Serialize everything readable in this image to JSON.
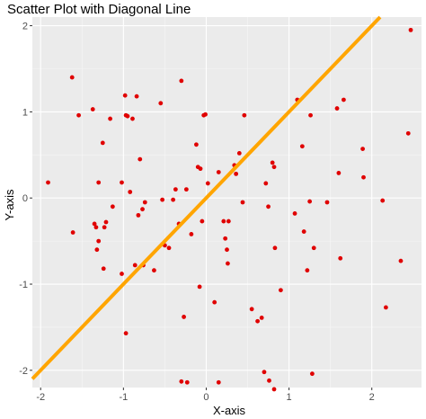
{
  "chart_data": {
    "type": "scatter",
    "title": "Scatter Plot with Diagonal Line",
    "xlabel": "X-axis",
    "ylabel": "Y-axis",
    "xlim": [
      -2.1,
      2.6
    ],
    "ylim": [
      -2.2,
      2.1
    ],
    "x_ticks": [
      -2,
      -1,
      0,
      1,
      2
    ],
    "y_ticks": [
      -2,
      -1,
      0,
      1,
      2
    ],
    "x_tick_labels": [
      "-2",
      "-1",
      "0",
      "1",
      "2"
    ],
    "y_tick_labels": [
      "-2",
      "-1",
      "0",
      "1",
      "2"
    ],
    "grid": true,
    "colors": {
      "panel": "#ebebeb",
      "grid_major": "#ffffff",
      "grid_minor": "#f7f7f7",
      "points": "#e00000",
      "line": "#ffa500"
    },
    "reference_line": {
      "slope": 1,
      "intercept": 0
    },
    "points": [
      {
        "x": -1.91,
        "y": 0.18
      },
      {
        "x": -1.62,
        "y": 1.4
      },
      {
        "x": -1.61,
        "y": -0.4
      },
      {
        "x": -1.54,
        "y": 0.96
      },
      {
        "x": -1.37,
        "y": 1.03
      },
      {
        "x": -1.35,
        "y": -0.3
      },
      {
        "x": -1.33,
        "y": -0.34
      },
      {
        "x": -1.3,
        "y": 0.18
      },
      {
        "x": -1.3,
        "y": -0.5
      },
      {
        "x": -1.25,
        "y": 0.64
      },
      {
        "x": -1.23,
        "y": -0.34
      },
      {
        "x": -1.21,
        "y": -0.28
      },
      {
        "x": -1.16,
        "y": 0.92
      },
      {
        "x": -1.13,
        "y": -0.1
      },
      {
        "x": -1.32,
        "y": -0.6
      },
      {
        "x": -1.24,
        "y": -0.82
      },
      {
        "x": -1.02,
        "y": 0.18
      },
      {
        "x": -0.98,
        "y": 1.19
      },
      {
        "x": -0.97,
        "y": 0.96
      },
      {
        "x": -0.95,
        "y": 0.95
      },
      {
        "x": -0.92,
        "y": 0.07
      },
      {
        "x": -0.89,
        "y": 0.92
      },
      {
        "x": -0.86,
        "y": -0.78
      },
      {
        "x": -0.84,
        "y": 1.18
      },
      {
        "x": -0.82,
        "y": -0.2
      },
      {
        "x": -0.8,
        "y": 0.45
      },
      {
        "x": -0.77,
        "y": -0.13
      },
      {
        "x": -0.76,
        "y": -0.78
      },
      {
        "x": -0.74,
        "y": -0.05
      },
      {
        "x": -1.02,
        "y": -0.88
      },
      {
        "x": -0.97,
        "y": -1.57
      },
      {
        "x": -0.63,
        "y": -0.84
      },
      {
        "x": -0.55,
        "y": 1.1
      },
      {
        "x": -0.53,
        "y": -0.02
      },
      {
        "x": -0.5,
        "y": -0.55
      },
      {
        "x": -0.45,
        "y": -0.58
      },
      {
        "x": -0.4,
        "y": -0.02
      },
      {
        "x": -0.37,
        "y": 0.1
      },
      {
        "x": -0.33,
        "y": -0.3
      },
      {
        "x": -0.3,
        "y": 1.36
      },
      {
        "x": -0.27,
        "y": -1.38
      },
      {
        "x": -0.24,
        "y": 0.1
      },
      {
        "x": -0.3,
        "y": -2.13
      },
      {
        "x": -0.23,
        "y": -2.14
      },
      {
        "x": -0.12,
        "y": 0.62
      },
      {
        "x": -0.1,
        "y": 0.36
      },
      {
        "x": -0.07,
        "y": 0.34
      },
      {
        "x": -0.08,
        "y": -1.03
      },
      {
        "x": -0.05,
        "y": -0.27
      },
      {
        "x": -0.03,
        "y": 0.96
      },
      {
        "x": -0.01,
        "y": 0.97
      },
      {
        "x": 0.02,
        "y": 0.17
      },
      {
        "x": 0.1,
        "y": -1.21
      },
      {
        "x": -0.18,
        "y": -0.42
      },
      {
        "x": 0.15,
        "y": -2.14
      },
      {
        "x": 0.15,
        "y": 0.3
      },
      {
        "x": 0.21,
        "y": -0.27
      },
      {
        "x": 0.23,
        "y": -0.47
      },
      {
        "x": 0.25,
        "y": -0.6
      },
      {
        "x": 0.26,
        "y": -0.76
      },
      {
        "x": 0.27,
        "y": -0.27
      },
      {
        "x": 0.34,
        "y": 0.38
      },
      {
        "x": 0.36,
        "y": 0.28
      },
      {
        "x": 0.4,
        "y": 0.52
      },
      {
        "x": 0.44,
        "y": -0.05
      },
      {
        "x": 0.46,
        "y": 0.96
      },
      {
        "x": 0.55,
        "y": -1.29
      },
      {
        "x": 0.62,
        "y": -1.43
      },
      {
        "x": 0.67,
        "y": -1.39
      },
      {
        "x": 0.72,
        "y": 0.17
      },
      {
        "x": 0.75,
        "y": -0.1
      },
      {
        "x": 0.8,
        "y": 0.41
      },
      {
        "x": 0.82,
        "y": 0.36
      },
      {
        "x": 0.83,
        "y": -0.58
      },
      {
        "x": 0.9,
        "y": -1.07
      },
      {
        "x": 0.7,
        "y": -2.02
      },
      {
        "x": 0.76,
        "y": -2.12
      },
      {
        "x": 0.82,
        "y": -2.22
      },
      {
        "x": 1.07,
        "y": -0.18
      },
      {
        "x": 1.1,
        "y": 1.14
      },
      {
        "x": 1.16,
        "y": 0.6
      },
      {
        "x": 1.18,
        "y": -0.39
      },
      {
        "x": 1.22,
        "y": -0.84
      },
      {
        "x": 1.26,
        "y": 0.96
      },
      {
        "x": 1.28,
        "y": -2.04
      },
      {
        "x": 1.3,
        "y": -0.58
      },
      {
        "x": 1.46,
        "y": -0.05
      },
      {
        "x": 1.58,
        "y": 1.04
      },
      {
        "x": 1.6,
        "y": 0.29
      },
      {
        "x": 1.62,
        "y": -0.7
      },
      {
        "x": 1.66,
        "y": 1.14
      },
      {
        "x": 1.89,
        "y": 0.57
      },
      {
        "x": 1.9,
        "y": 0.24
      },
      {
        "x": 2.13,
        "y": -0.03
      },
      {
        "x": 2.17,
        "y": -1.27
      },
      {
        "x": 2.35,
        "y": -0.73
      },
      {
        "x": 2.44,
        "y": 0.75
      },
      {
        "x": 2.47,
        "y": 1.95
      },
      {
        "x": 1.25,
        "y": -0.04
      }
    ]
  }
}
